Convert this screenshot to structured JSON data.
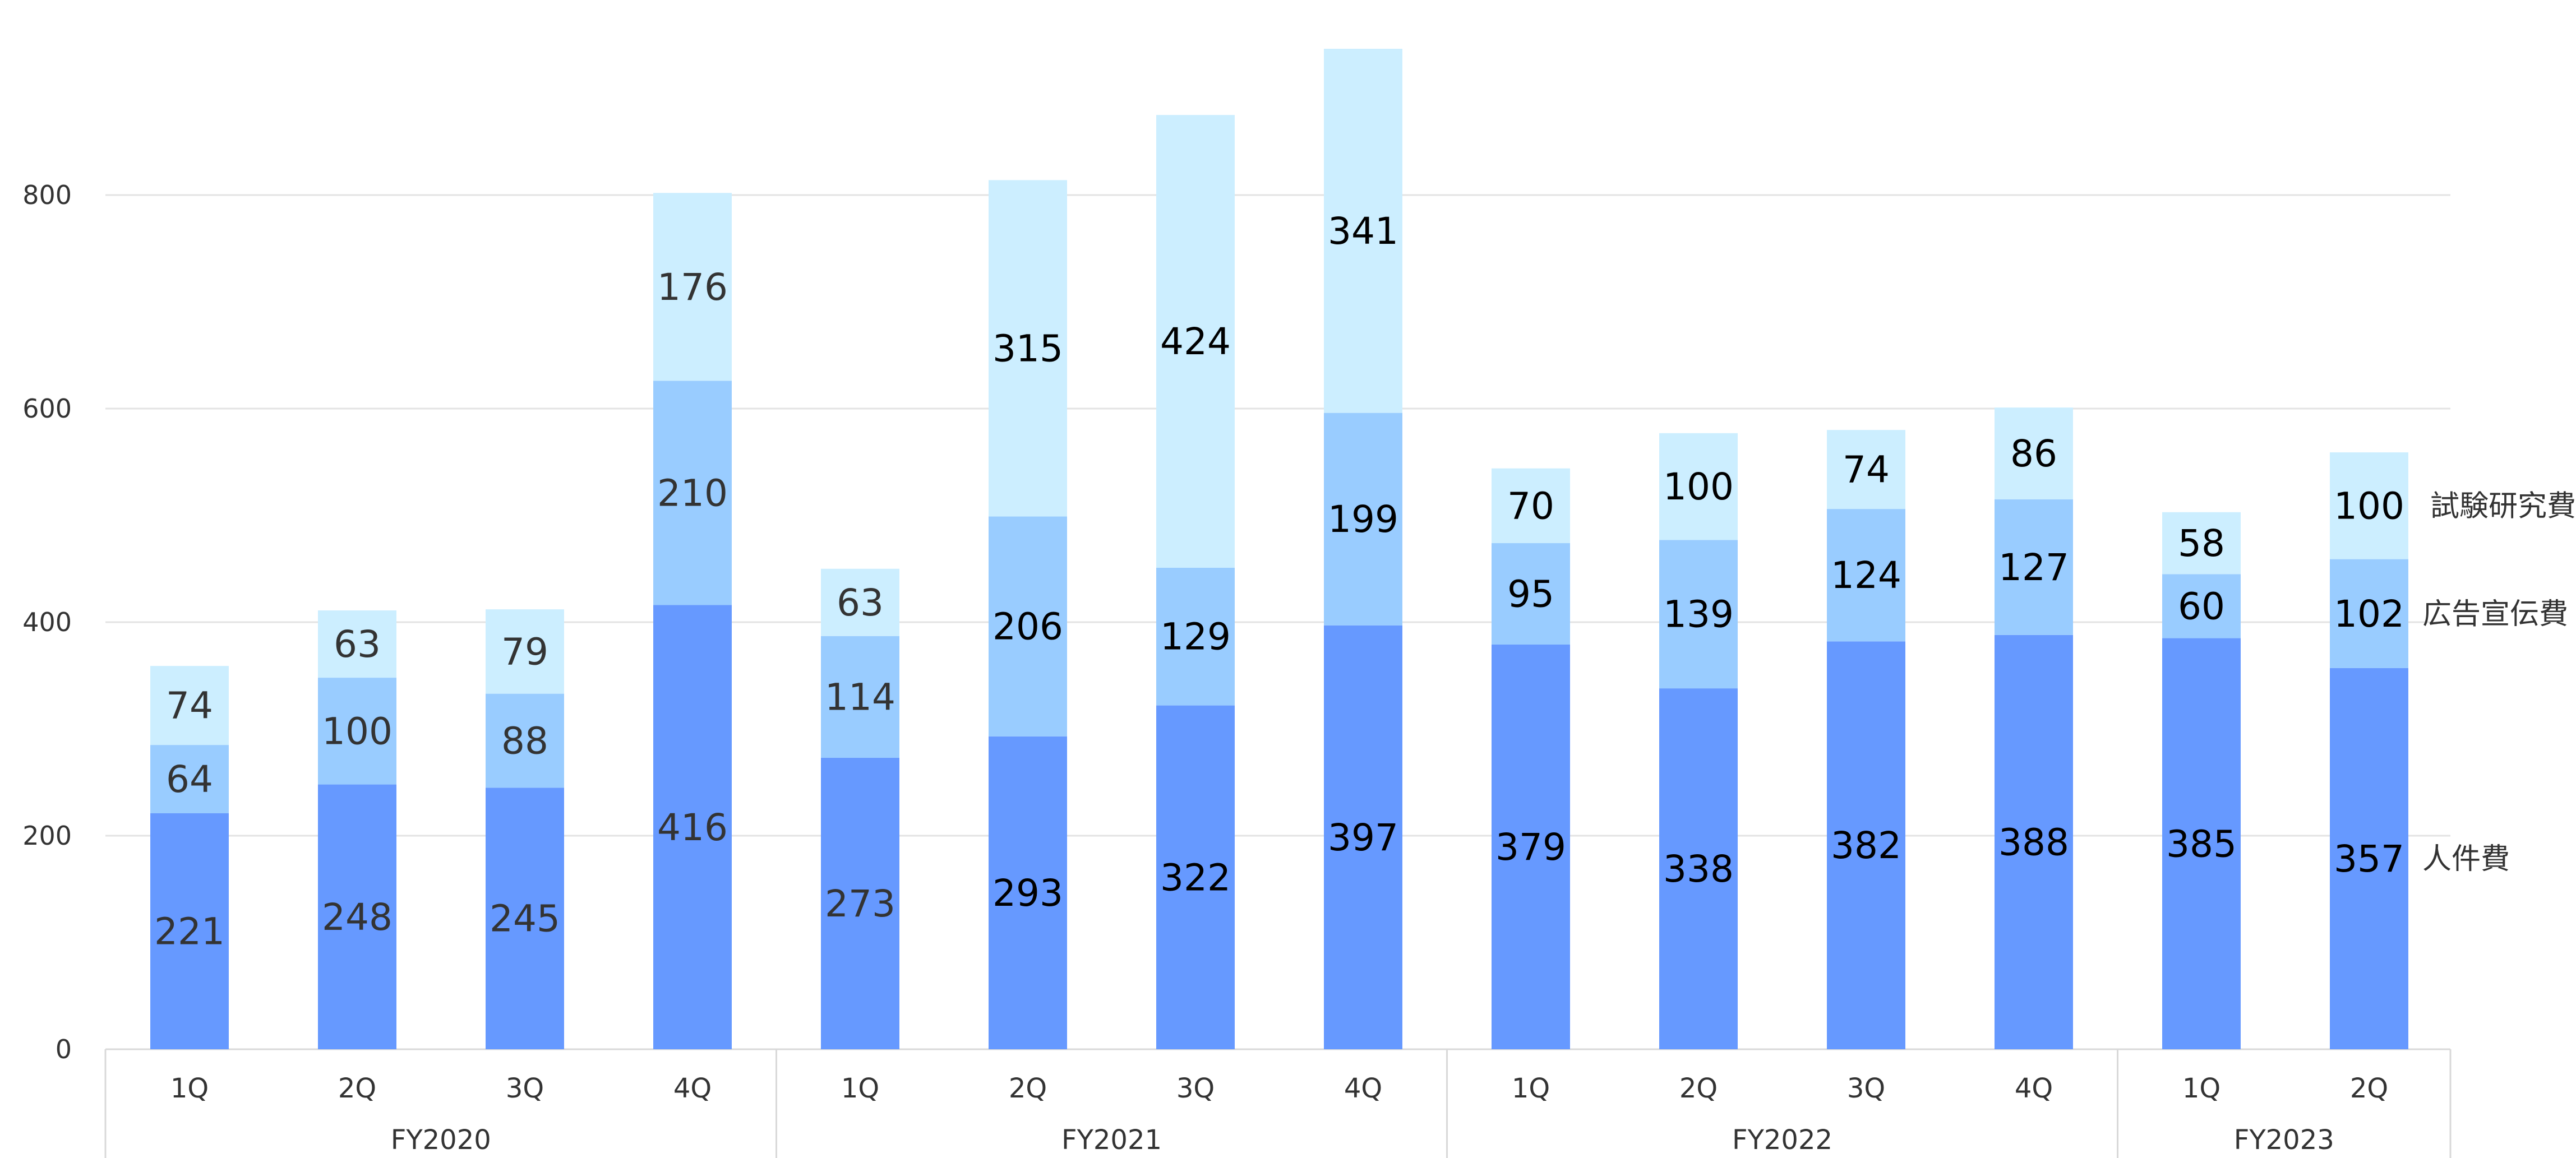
{
  "chart_data": {
    "type": "bar",
    "stacked": true,
    "ylim": [
      0,
      950
    ],
    "yticks": [
      0,
      200,
      400,
      600,
      800
    ],
    "grid": true,
    "legend_placement": "right, at the end of each series",
    "groups": [
      {
        "label": "FY2020",
        "quarters": [
          "1Q",
          "2Q",
          "3Q",
          "4Q"
        ]
      },
      {
        "label": "FY2021",
        "quarters": [
          "1Q",
          "2Q",
          "3Q",
          "4Q"
        ]
      },
      {
        "label": "FY2022",
        "quarters": [
          "1Q",
          "2Q",
          "3Q",
          "4Q"
        ]
      },
      {
        "label": "FY2023",
        "quarters": [
          "1Q",
          "2Q"
        ]
      }
    ],
    "categories": [
      "1Q",
      "2Q",
      "3Q",
      "4Q",
      "1Q",
      "2Q",
      "3Q",
      "4Q",
      "1Q",
      "2Q",
      "3Q",
      "4Q",
      "1Q",
      "2Q"
    ],
    "series": [
      {
        "name": "人件費",
        "color": "#6699ff",
        "values": [
          221,
          248,
          245,
          416,
          273,
          293,
          322,
          397,
          379,
          338,
          382,
          388,
          385,
          357
        ]
      },
      {
        "name": "広告宣伝費",
        "color": "#99ccff",
        "values": [
          64,
          100,
          88,
          210,
          114,
          206,
          129,
          199,
          95,
          139,
          124,
          127,
          60,
          102
        ]
      },
      {
        "name": "試験研究費",
        "color": "#cceeff",
        "values": [
          74,
          63,
          79,
          176,
          63,
          315,
          424,
          341,
          70,
          100,
          74,
          86,
          58,
          100
        ]
      }
    ],
    "label_colors": {
      "muted": "#333333",
      "strong": "#000000"
    }
  }
}
